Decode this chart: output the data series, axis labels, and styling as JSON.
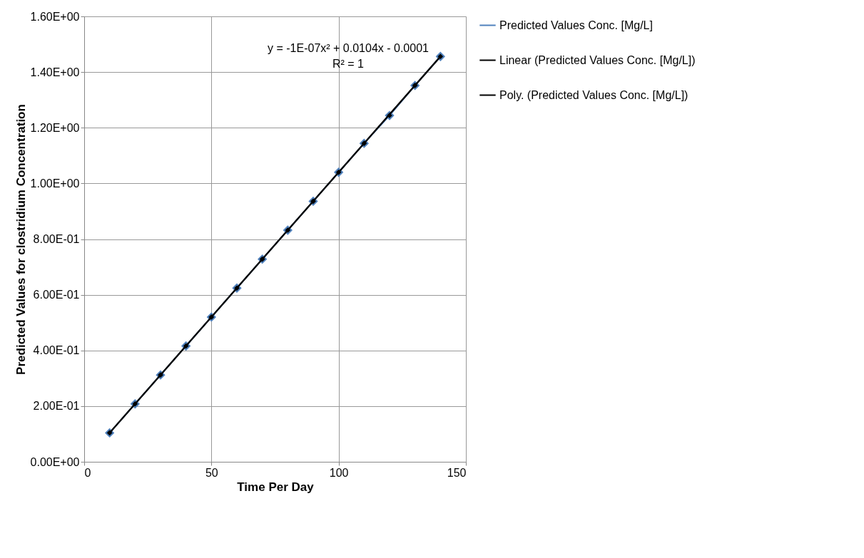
{
  "chart_data": {
    "type": "line",
    "xlabel": "Time Per Day",
    "ylabel": "Predicted Values for clostridium Concentration",
    "xlim": [
      0,
      150
    ],
    "xticks": [
      0,
      50,
      100,
      150
    ],
    "ylim": [
      0,
      1.6
    ],
    "yticks": [
      {
        "value": 0,
        "label": "0.00E+00"
      },
      {
        "value": 0.2,
        "label": "2.00E-01"
      },
      {
        "value": 0.4,
        "label": "4.00E-01"
      },
      {
        "value": 0.6,
        "label": "6.00E-01"
      },
      {
        "value": 0.8,
        "label": "8.00E-01"
      },
      {
        "value": 1.0,
        "label": "1.00E+00"
      },
      {
        "value": 1.2,
        "label": "1.20E+00"
      },
      {
        "value": 1.4,
        "label": "1.40E+00"
      },
      {
        "value": 1.6,
        "label": "1.60E+00"
      }
    ],
    "grid": true,
    "legend": "right",
    "marker": "diamond",
    "line_style": "solid",
    "annotations": [
      "y = -1E-07x² + 0.0104x - 0.0001",
      "R² = 1"
    ],
    "series": [
      {
        "name": "Predicted  Values Conc. [Mg/L]",
        "color": "#4f81bd",
        "x": [
          10,
          20,
          30,
          40,
          50,
          60,
          70,
          80,
          90,
          100,
          110,
          120,
          130,
          140
        ],
        "values": [
          0.104,
          0.208,
          0.312,
          0.416,
          0.52,
          0.624,
          0.728,
          0.832,
          0.936,
          1.04,
          1.144,
          1.244,
          1.352,
          1.456
        ]
      },
      {
        "name": "Linear (Predicted  Values Conc. [Mg/L])",
        "type": "line",
        "marker": "none",
        "color": "#000000",
        "x": [
          10,
          140
        ],
        "values": [
          0.104,
          1.456
        ]
      },
      {
        "name": "Poly. (Predicted  Values Conc. [Mg/L])",
        "type": "line",
        "marker": "none",
        "color": "#000000",
        "x": [
          10,
          140
        ],
        "values": [
          0.104,
          1.456
        ]
      }
    ]
  }
}
